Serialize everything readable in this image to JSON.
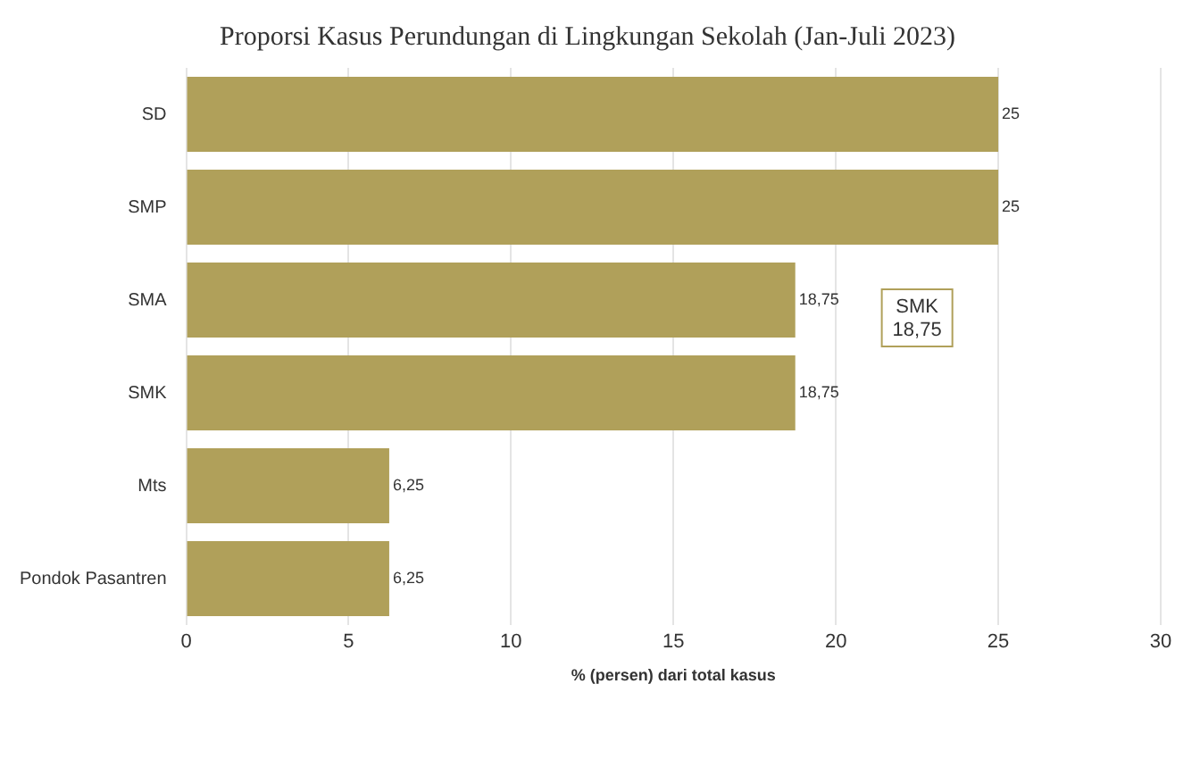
{
  "chart_data": {
    "type": "bar",
    "orientation": "horizontal",
    "title": "Proporsi Kasus Perundungan di Lingkungan Sekolah (Jan-Juli 2023)",
    "xlabel": "% (persen) dari total kasus",
    "categories": [
      "SD",
      "SMP",
      "SMA",
      "SMK",
      "Mts",
      "Pondok Pasantren"
    ],
    "values": [
      25,
      25,
      18.75,
      18.75,
      6.25,
      6.25
    ],
    "value_labels": [
      "25",
      "25",
      "18,75",
      "18,75",
      "6,25",
      "6,25"
    ],
    "color": "#b0a05a",
    "xlim": [
      0,
      30
    ],
    "xticks": [
      0,
      5,
      10,
      15,
      20,
      25,
      30
    ],
    "grid": "x",
    "legend": false,
    "annotations": [
      "SMK\n18,75"
    ]
  }
}
